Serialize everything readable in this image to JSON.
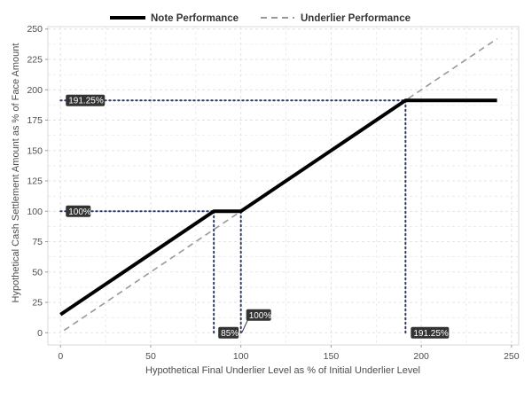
{
  "chart_data": {
    "type": "line",
    "xlabel": "Hypothetical Final Underlier Level as % of Initial Underlier Level",
    "ylabel": "Hypothetical Cash Settlement Amount as % of Face Amount",
    "xlim": [
      -7,
      254
    ],
    "ylim": [
      -10,
      252
    ],
    "xticks": [
      0,
      50,
      100,
      150,
      200,
      250
    ],
    "yticks": [
      0,
      25,
      50,
      75,
      100,
      125,
      150,
      175,
      200,
      225,
      250
    ],
    "grid": true,
    "legend_position": "top",
    "series": [
      {
        "name": "Note Performance",
        "style": "solid",
        "color": "#000000",
        "x": [
          0,
          85,
          100,
          191.25,
          242
        ],
        "y": [
          15,
          100,
          100,
          191.25,
          191.25
        ]
      },
      {
        "name": "Underlier Performance",
        "style": "dashed",
        "color": "#999999",
        "x": [
          2,
          242
        ],
        "y": [
          2,
          242
        ]
      }
    ],
    "reference_lines": [
      {
        "orientation": "horizontal",
        "value": 191.25,
        "from": 0,
        "to": 191.25
      },
      {
        "orientation": "horizontal",
        "value": 100,
        "from": 0,
        "to": 85
      },
      {
        "orientation": "vertical",
        "value": 85,
        "from": 0,
        "to": 100
      },
      {
        "orientation": "vertical",
        "value": 100,
        "from": 0,
        "to": 100
      },
      {
        "orientation": "vertical",
        "value": 191.25,
        "from": 0,
        "to": 191.25
      }
    ],
    "callouts": [
      {
        "text": "191.25%",
        "x": 0,
        "y": 191.25
      },
      {
        "text": "100%",
        "x": 0,
        "y": 100
      },
      {
        "text": "85%",
        "x": 85,
        "y": 0
      },
      {
        "text": "100%",
        "x": 100,
        "y": 0
      },
      {
        "text": "191.25%",
        "x": 191.25,
        "y": 0
      }
    ],
    "colors": {
      "reference": "#2b3a67",
      "callout_bg": "#333333",
      "grid": "#e0e0e0"
    }
  }
}
